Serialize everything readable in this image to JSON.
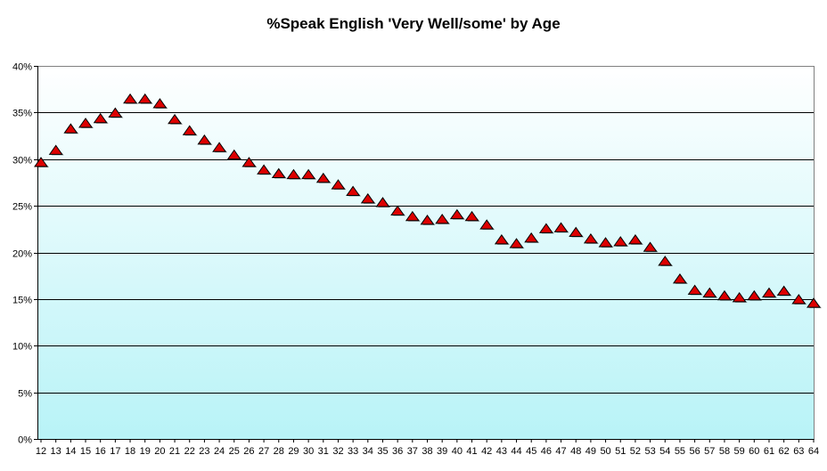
{
  "chart_data": {
    "type": "scatter",
    "title": "%Speak English 'Very Well/some' by Age",
    "xlabel": "",
    "ylabel": "",
    "x": [
      12,
      13,
      14,
      15,
      16,
      17,
      18,
      19,
      20,
      21,
      22,
      23,
      24,
      25,
      26,
      27,
      28,
      29,
      30,
      31,
      32,
      33,
      34,
      35,
      36,
      37,
      38,
      39,
      40,
      41,
      42,
      43,
      44,
      45,
      46,
      47,
      48,
      49,
      50,
      51,
      52,
      53,
      54,
      55,
      56,
      57,
      58,
      59,
      60,
      61,
      62,
      63,
      64
    ],
    "series": [
      {
        "values": [
          29.5,
          30.8,
          33.1,
          33.7,
          34.2,
          34.8,
          36.3,
          36.3,
          35.8,
          34.1,
          32.9,
          31.9,
          31.1,
          30.3,
          29.5,
          28.7,
          28.3,
          28.2,
          28.2,
          27.8,
          27.1,
          26.4,
          25.6,
          25.2,
          24.3,
          23.7,
          23.3,
          23.4,
          23.9,
          23.7,
          22.8,
          21.2,
          20.8,
          21.4,
          22.4,
          22.5,
          22.0,
          21.3,
          20.9,
          21.0,
          21.2,
          20.4,
          18.9,
          17.0,
          15.8,
          15.5,
          15.2,
          15.0,
          15.2,
          15.5,
          15.7,
          14.8,
          14.4
        ],
        "color": "#cc0000"
      }
    ],
    "ylim": [
      0,
      40
    ],
    "yticks": [
      0,
      5,
      10,
      15,
      20,
      25,
      30,
      35,
      40
    ],
    "ytick_format": "%",
    "grid": true,
    "legend": "none",
    "marker": "triangle",
    "colors": {
      "gradient_top": "#ffffff",
      "gradient_bottom": "#b8f3f7",
      "gridline": "#000000",
      "marker_fill": "#dd0000",
      "marker_edge": "#000000"
    }
  }
}
